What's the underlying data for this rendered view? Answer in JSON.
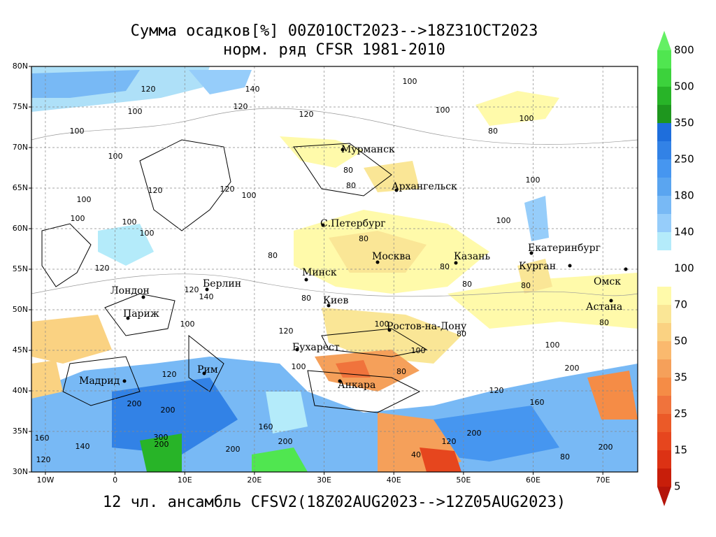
{
  "title": {
    "line1": "Сумма осадков[%] 00Z01OCT2023-->18Z31OCT2023",
    "line2": "норм. ряд CFSR 1981-2010"
  },
  "footer": "12 чл. ансамбль CFSV2(18Z02AUG2023-->12Z05AUG2023)",
  "map": {
    "xlim": [
      -12,
      75
    ],
    "ylim": [
      30,
      80
    ],
    "xticks": [
      {
        "value": -10,
        "label": "10W"
      },
      0,
      {
        "value": 10,
        "label": "10E"
      },
      {
        "value": 20,
        "label": "20E"
      },
      {
        "value": 30,
        "label": "30E"
      },
      {
        "value": 40,
        "label": "40E"
      },
      {
        "value": 50,
        "label": "50E"
      },
      {
        "value": 60,
        "label": "60E"
      },
      {
        "value": 70,
        "label": "70E"
      }
    ],
    "yticks": [
      {
        "value": 80,
        "label": "80N"
      },
      {
        "value": 75,
        "label": "75N"
      },
      {
        "value": 70,
        "label": "70N"
      },
      {
        "value": 65,
        "label": "65N"
      },
      {
        "value": 60,
        "label": "60N"
      },
      {
        "value": 55,
        "label": "55N"
      },
      {
        "value": 50,
        "label": "50N"
      },
      {
        "value": 45,
        "label": "45N"
      },
      {
        "value": 40,
        "label": "40N"
      },
      {
        "value": 35,
        "label": "35N"
      },
      {
        "value": 30,
        "label": "30N"
      }
    ],
    "grid": true,
    "cities": [
      "Мурманск",
      "Архангельск",
      "С.Петербург",
      "Москва",
      "Казань",
      "Екатеринбург",
      "Курган",
      "Омск",
      "Астана",
      "Минск",
      "Киев",
      "Берлин",
      "Лондон",
      "Париж",
      "Ростов-на-Дону",
      "Бухарест",
      "Рим",
      "Мадрид",
      "Анкара"
    ],
    "contour_labels": [
      120,
      140,
      120,
      100,
      120,
      100,
      100,
      100,
      100,
      80,
      100,
      80,
      80,
      100,
      120,
      120,
      100,
      100,
      100,
      100,
      100,
      100,
      80,
      80,
      120,
      80,
      80,
      80,
      140,
      120,
      80,
      100,
      100,
      80,
      100,
      80,
      120,
      100,
      80,
      100,
      120,
      200,
      120,
      160,
      200,
      200,
      300,
      200,
      160,
      140,
      200,
      160,
      120,
      200,
      200,
      40,
      80,
      200,
      120
    ]
  },
  "colorbar": {
    "labels": [
      800,
      500,
      350,
      250,
      180,
      140,
      100,
      70,
      50,
      35,
      25,
      15,
      5
    ],
    "colors": [
      "#50e650",
      "#3cd23c",
      "#28b428",
      "#1e961e",
      "#1e6edc",
      "#3282e6",
      "#4696f0",
      "#5aa5f0",
      "#78b9f5",
      "#96cdfa",
      "#b4ebfa",
      "#ffffff",
      "#ffffff",
      "#fffaaa",
      "#fae696",
      "#fad282",
      "#fab96e",
      "#f5a05a",
      "#f58c46",
      "#f0733c",
      "#eb5a28",
      "#e6461e",
      "#dc3214",
      "#c81e0a"
    ],
    "top_color": "#64f064",
    "bottom_color": "#b4140a"
  }
}
